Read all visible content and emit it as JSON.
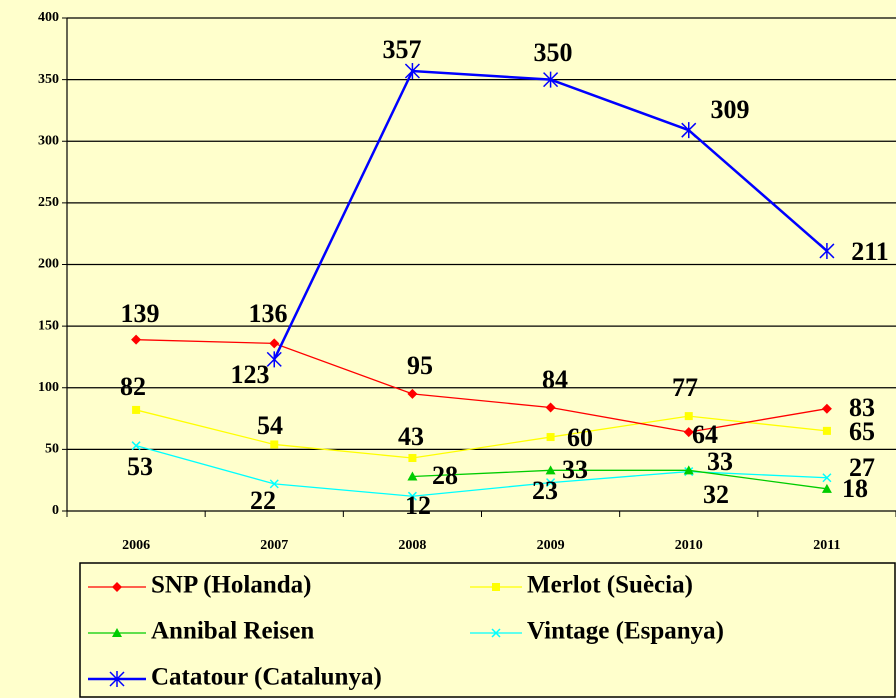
{
  "chart_data": {
    "type": "line",
    "categories": [
      "2006",
      "2007",
      "2008",
      "2009",
      "2010",
      "2011"
    ],
    "ylim": [
      0,
      400
    ],
    "yticks": [
      0,
      50,
      100,
      150,
      200,
      250,
      300,
      350,
      400
    ],
    "grid": true,
    "series": [
      {
        "name": "SNP (Holanda)",
        "color": "#ff0000",
        "marker": "diamond",
        "values": [
          139,
          136,
          95,
          84,
          64,
          83
        ]
      },
      {
        "name": "Merlot (Suècia)",
        "color": "#ffff00",
        "marker": "square",
        "values": [
          82,
          54,
          43,
          60,
          77,
          65
        ]
      },
      {
        "name": "Annibal Reisen",
        "color": "#00cc00",
        "marker": "triangle",
        "values": [
          null,
          null,
          28,
          33,
          33,
          18
        ]
      },
      {
        "name": "Vintage (Espanya)",
        "color": "#00ffff",
        "marker": "x",
        "values": [
          53,
          22,
          12,
          23,
          32,
          27
        ]
      },
      {
        "name": "Catatour (Catalunya)",
        "color": "#0000ff",
        "marker": "asterisk",
        "values": [
          null,
          123,
          357,
          350,
          309,
          211
        ]
      }
    ]
  }
}
